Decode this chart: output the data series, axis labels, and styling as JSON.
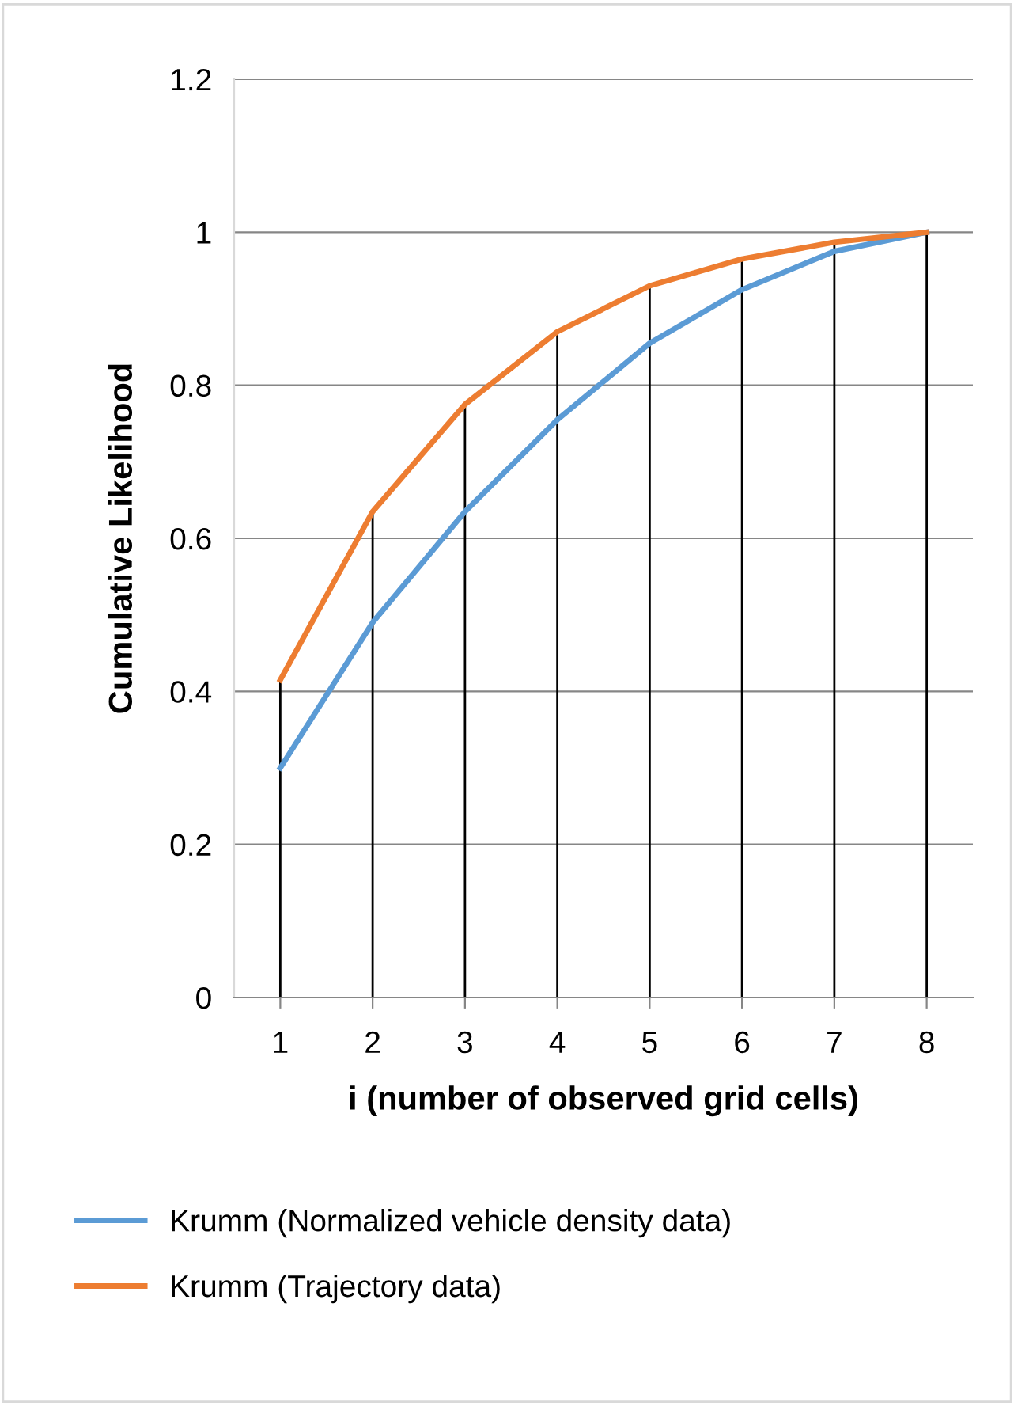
{
  "chart_data": {
    "type": "line",
    "xlabel": "i (number of observed grid cells)",
    "ylabel": "Cumulative Likelihood",
    "x": [
      1,
      2,
      3,
      4,
      5,
      6,
      7,
      8
    ],
    "xlim": [
      0.5,
      8.5
    ],
    "xticks": [
      1,
      2,
      3,
      4,
      5,
      6,
      7,
      8
    ],
    "ylim": [
      0,
      1.2
    ],
    "yticks": [
      0,
      0.2,
      0.4,
      0.6,
      0.8,
      1,
      1.2
    ],
    "series": [
      {
        "name": "Krumm (Normalized vehicle density data)",
        "color": "#5b9bd5",
        "values": [
          0.3,
          0.49,
          0.635,
          0.755,
          0.855,
          0.925,
          0.975,
          1.0
        ]
      },
      {
        "name": "Krumm (Trajectory data)",
        "color": "#ed7d31",
        "values": [
          0.415,
          0.635,
          0.775,
          0.87,
          0.93,
          0.965,
          0.987,
          1.0
        ]
      }
    ],
    "ref_lines": [
      {
        "axis": "x",
        "value": 1,
        "label": null,
        "color": "#000000"
      },
      {
        "axis": "x",
        "value": 2,
        "label": null,
        "color": "#000000"
      },
      {
        "axis": "x",
        "value": 3,
        "label": null,
        "color": "#000000"
      },
      {
        "axis": "x",
        "value": 4,
        "label": null,
        "color": "#000000"
      },
      {
        "axis": "x",
        "value": 5,
        "label": null,
        "color": "#000000"
      },
      {
        "axis": "x",
        "value": 6,
        "label": null,
        "color": "#000000"
      },
      {
        "axis": "x",
        "value": 7,
        "label": null,
        "color": "#000000"
      },
      {
        "axis": "x",
        "value": 8,
        "label": null,
        "color": "#000000"
      }
    ],
    "grid": "y",
    "legend": "bottom",
    "marker": "none",
    "line_style": "solid"
  }
}
